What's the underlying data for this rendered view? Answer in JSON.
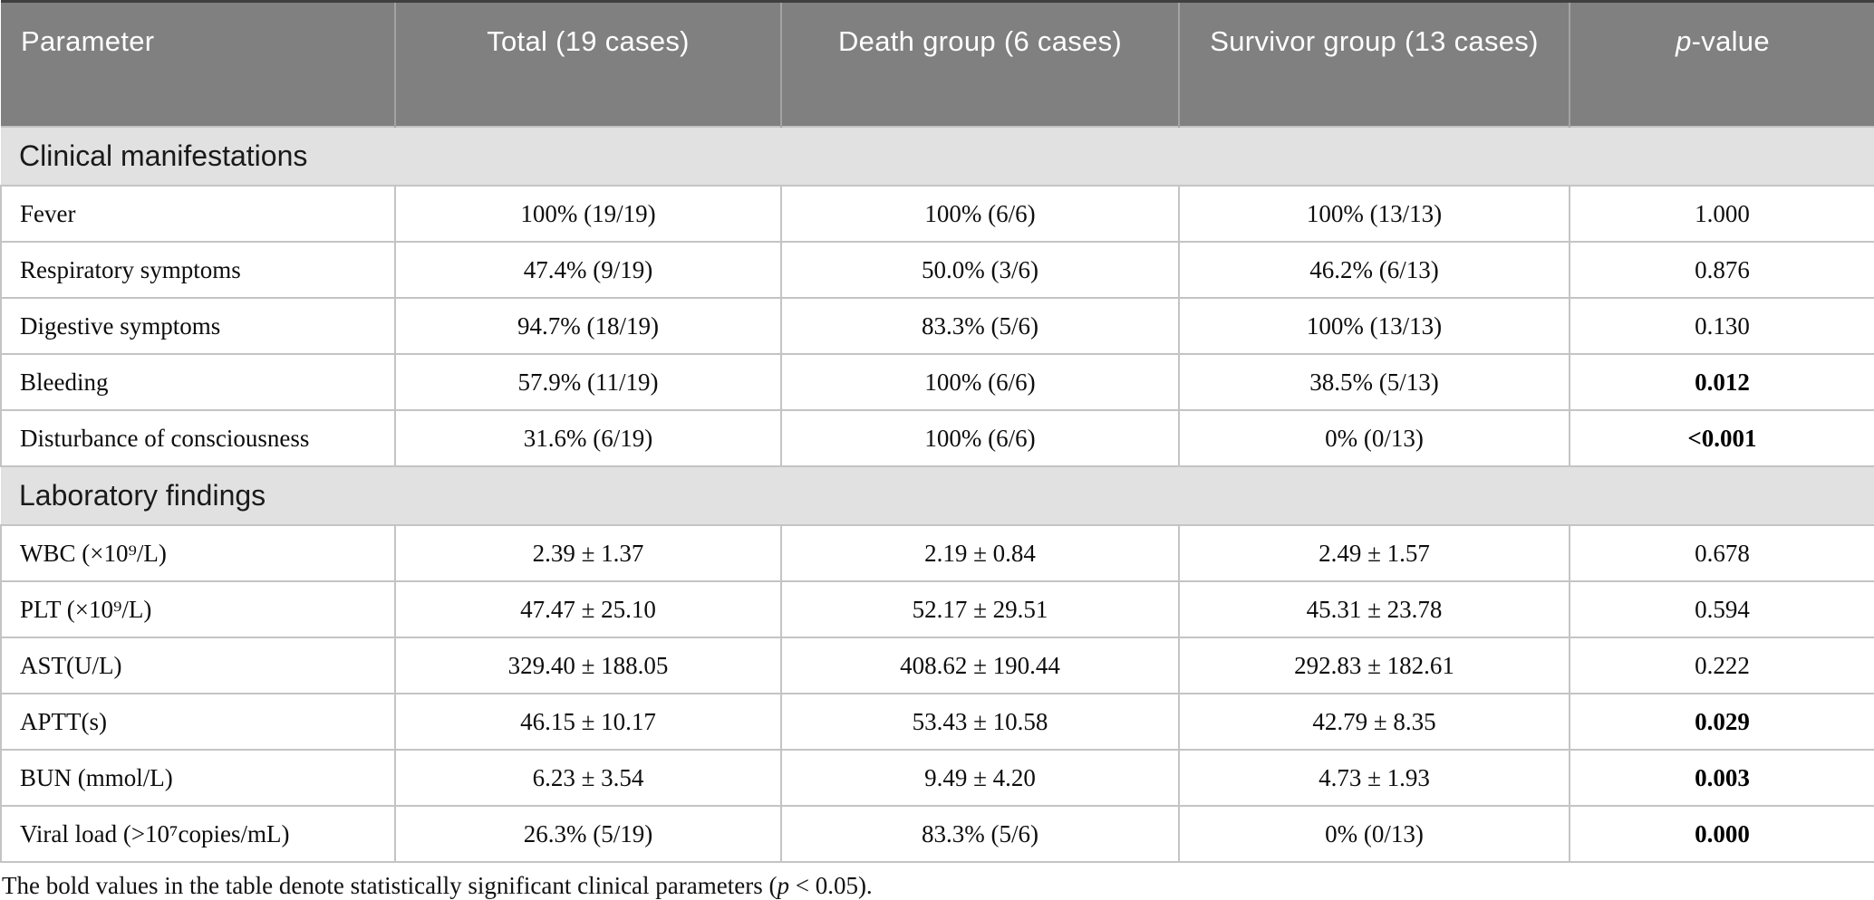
{
  "colors": {
    "header_bg": "#808080",
    "header_text": "#ffffff",
    "header_divider": "#a3a3a3",
    "section_bg": "#e1e1e1",
    "grid_border": "#c4c4c4",
    "body_text": "#0d0d0d"
  },
  "table": {
    "columns": [
      {
        "key": "parameter",
        "label": "Parameter"
      },
      {
        "key": "total",
        "label": "Total (19 cases)"
      },
      {
        "key": "death",
        "label": "Death group (6 cases)"
      },
      {
        "key": "survivor",
        "label": "Survivor group (13 cases)"
      },
      {
        "key": "p",
        "label_italic": "p",
        "label_rest": "-value"
      }
    ],
    "sections": [
      {
        "title": "Clinical manifestations",
        "rows": [
          {
            "parameter": "Fever",
            "total": "100% (19/19)",
            "death": "100% (6/6)",
            "survivor": "100% (13/13)",
            "p": "1.000",
            "significant": false
          },
          {
            "parameter": "Respiratory symptoms",
            "total": "47.4% (9/19)",
            "death": "50.0% (3/6)",
            "survivor": "46.2% (6/13)",
            "p": "0.876",
            "significant": false
          },
          {
            "parameter": "Digestive symptoms",
            "total": "94.7% (18/19)",
            "death": "83.3% (5/6)",
            "survivor": "100% (13/13)",
            "p": "0.130",
            "significant": false
          },
          {
            "parameter": "Bleeding",
            "total": "57.9% (11/19)",
            "death": "100% (6/6)",
            "survivor": "38.5% (5/13)",
            "p": "0.012",
            "significant": true
          },
          {
            "parameter": "Disturbance of consciousness",
            "total": "31.6% (6/19)",
            "death": "100% (6/6)",
            "survivor": "0% (0/13)",
            "p": "<0.001",
            "significant": true
          }
        ]
      },
      {
        "title": "Laboratory findings",
        "rows": [
          {
            "parameter": "WBC (×10⁹/L)",
            "total": "2.39 ± 1.37",
            "death": "2.19 ± 0.84",
            "survivor": "2.49 ± 1.57",
            "p": "0.678",
            "significant": false
          },
          {
            "parameter": "PLT (×10⁹/L)",
            "total": "47.47 ± 25.10",
            "death": "52.17 ± 29.51",
            "survivor": "45.31 ± 23.78",
            "p": "0.594",
            "significant": false
          },
          {
            "parameter": "AST(U/L)",
            "total": "329.40 ± 188.05",
            "death": "408.62 ± 190.44",
            "survivor": "292.83 ± 182.61",
            "p": "0.222",
            "significant": false
          },
          {
            "parameter": "APTT(s)",
            "total": "46.15 ± 10.17",
            "death": "53.43 ± 10.58",
            "survivor": "42.79 ± 8.35",
            "p": "0.029",
            "significant": true
          },
          {
            "parameter": "BUN (mmol/L)",
            "total": "6.23 ± 3.54",
            "death": "9.49 ± 4.20",
            "survivor": "4.73 ± 1.93",
            "p": "0.003",
            "significant": true
          },
          {
            "parameter": "Viral load (>10⁷copies/mL)",
            "total": "26.3% (5/19)",
            "death": "83.3% (5/6)",
            "survivor": "0% (0/13)",
            "p": "0.000",
            "significant": true
          }
        ]
      }
    ]
  },
  "footnote": {
    "prefix": "The bold values in the table denote statistically significant clinical parameters (",
    "italic": "p",
    "suffix": " < 0.05)."
  }
}
